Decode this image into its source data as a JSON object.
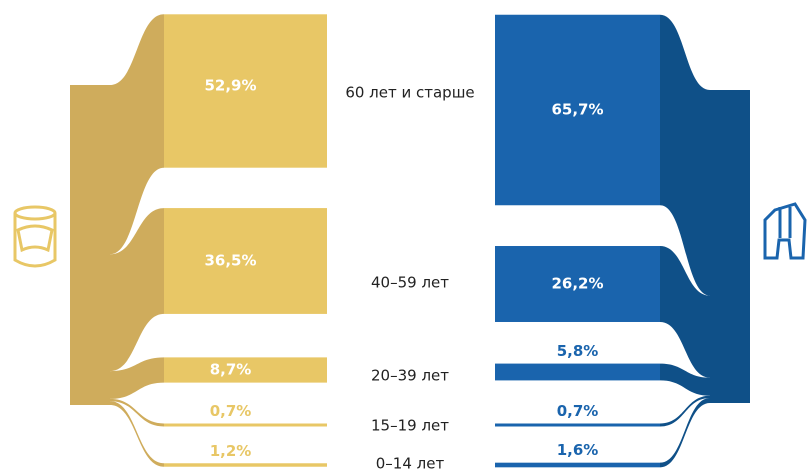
{
  "chart_data": {
    "type": "sankey",
    "categories": [
      "60 лет и старше",
      "40–59 лет",
      "20–39 лет",
      "15–19 лет",
      "0–14 лет"
    ],
    "series": [
      {
        "color": "#e8c766",
        "values": [
          52.9,
          36.5,
          8.7,
          0.7,
          1.2
        ],
        "value_labels": [
          "52,9%",
          "36,5%",
          "8,7%",
          "0,7%",
          "1,2%"
        ]
      },
      {
        "color": "#1a64ad",
        "values": [
          65.7,
          26.2,
          5.8,
          0.7,
          1.6
        ],
        "value_labels": [
          "65,7%",
          "26,2%",
          "5,8%",
          "0,7%",
          "1,6%"
        ]
      }
    ]
  }
}
